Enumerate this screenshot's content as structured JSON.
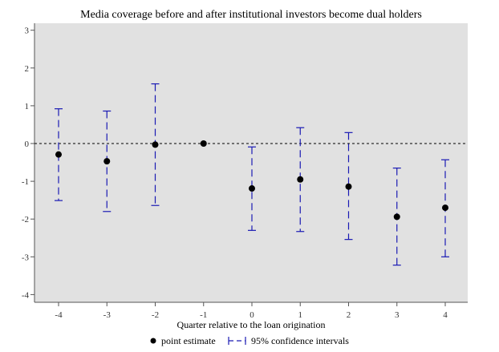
{
  "chart_data": {
    "type": "scatter",
    "title": "Media coverage before and after institutional investors become dual holders",
    "xlabel": "Quarter relative to the loan origination",
    "ylabel": "",
    "x": [
      -4,
      -3,
      -2,
      -1,
      0,
      1,
      2,
      3,
      4
    ],
    "x_tick_labels": [
      "-4",
      "-3",
      "-2",
      "-1",
      "0",
      "1",
      "2",
      "3",
      "4"
    ],
    "y_ticks": [
      3,
      2,
      1,
      0,
      -1,
      -2,
      -3,
      -4
    ],
    "y_tick_labels": [
      "3",
      "2",
      "1",
      "0",
      "-1",
      "-2",
      "-3",
      "-4"
    ],
    "ylim": [
      -4.1,
      3.2
    ],
    "series": [
      {
        "name": "point estimate",
        "values": [
          -0.29,
          -0.47,
          -0.03,
          0.0,
          -1.19,
          -0.95,
          -1.14,
          -1.94,
          -1.7
        ]
      },
      {
        "name": "95% confidence intervals",
        "lower": [
          -1.51,
          -1.8,
          -1.64,
          null,
          -2.3,
          -2.33,
          -2.54,
          -3.22,
          -3.0
        ],
        "upper": [
          0.92,
          0.86,
          1.58,
          null,
          -0.09,
          0.42,
          0.29,
          -0.65,
          -0.43
        ]
      }
    ],
    "reference_line": {
      "y": 0,
      "style": "dashed"
    },
    "grid": false,
    "legend_position": "bottom"
  },
  "colors": {
    "plot_background": "#e1e1e1",
    "ci": "#1a1ab4",
    "point": "#000000",
    "reference_line": "#000000"
  }
}
